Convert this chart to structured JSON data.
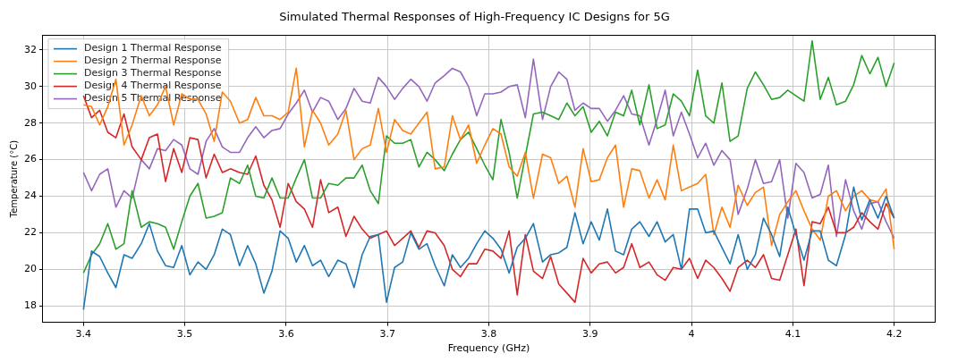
{
  "chart_data": {
    "type": "line",
    "title": "Simulated Thermal Responses of High-Frequency IC Designs for 5G",
    "xlabel": "Frequency (GHz)",
    "ylabel": "Temperature (°C)",
    "x": [
      3.4,
      3.408,
      3.416,
      3.424,
      3.432,
      3.44,
      3.448,
      3.457,
      3.465,
      3.473,
      3.481,
      3.489,
      3.497,
      3.505,
      3.513,
      3.521,
      3.529,
      3.537,
      3.545,
      3.554,
      3.562,
      3.57,
      3.578,
      3.586,
      3.594,
      3.602,
      3.61,
      3.618,
      3.626,
      3.634,
      3.642,
      3.651,
      3.659,
      3.667,
      3.675,
      3.683,
      3.691,
      3.699,
      3.707,
      3.715,
      3.723,
      3.731,
      3.739,
      3.747,
      3.756,
      3.764,
      3.772,
      3.78,
      3.788,
      3.796,
      3.804,
      3.812,
      3.82,
      3.828,
      3.836,
      3.844,
      3.853,
      3.861,
      3.869,
      3.877,
      3.885,
      3.893,
      3.901,
      3.909,
      3.917,
      3.925,
      3.933,
      3.941,
      3.949,
      3.958,
      3.966,
      3.974,
      3.982,
      3.99,
      3.998,
      4.006,
      4.014,
      4.022,
      4.03,
      4.038,
      4.046,
      4.055,
      4.063,
      4.071,
      4.079,
      4.087,
      4.095,
      4.103,
      4.111,
      4.119,
      4.127,
      4.135,
      4.143,
      4.152,
      4.16,
      4.168,
      4.176,
      4.184,
      4.192,
      4.2
    ],
    "series": [
      {
        "name": "Design 1 Thermal Response",
        "color": "#1f77b4",
        "values": [
          17.8,
          21.0,
          20.7,
          19.8,
          19.0,
          20.8,
          20.6,
          21.4,
          22.5,
          21.0,
          20.2,
          20.1,
          21.3,
          19.7,
          20.4,
          20.0,
          20.8,
          22.2,
          21.9,
          20.2,
          21.3,
          20.3,
          18.7,
          19.9,
          22.1,
          21.7,
          20.4,
          21.3,
          20.2,
          20.5,
          19.6,
          20.5,
          20.3,
          19.0,
          20.8,
          21.8,
          21.9,
          18.2,
          20.1,
          20.4,
          22.0,
          21.1,
          21.4,
          20.2,
          19.1,
          20.8,
          20.1,
          20.6,
          21.4,
          22.1,
          21.7,
          21.1,
          19.8,
          21.2,
          21.7,
          22.5,
          20.4,
          20.8,
          20.9,
          21.2,
          23.1,
          21.4,
          22.6,
          21.6,
          23.3,
          21.0,
          20.8,
          22.2,
          22.6,
          21.8,
          22.6,
          21.5,
          21.9,
          20.0,
          23.3,
          23.3,
          22.0,
          22.1,
          21.2,
          20.3,
          21.9,
          20.0,
          20.8,
          22.8,
          21.9,
          20.7,
          23.4,
          21.9,
          20.5,
          22.1,
          22.1,
          20.5,
          20.2,
          21.9,
          24.5,
          22.7,
          23.8,
          22.8,
          24.0,
          22.8
        ]
      },
      {
        "name": "Design 2 Thermal Response",
        "color": "#ff7f0e",
        "values": [
          29.0,
          28.9,
          27.9,
          28.9,
          30.4,
          26.8,
          27.9,
          29.5,
          28.4,
          29.0,
          30.0,
          27.9,
          29.6,
          29.3,
          29.3,
          28.5,
          27.0,
          29.7,
          29.2,
          28.0,
          28.2,
          29.4,
          28.4,
          28.4,
          28.2,
          28.6,
          31.0,
          26.7,
          28.7,
          28.0,
          26.8,
          27.4,
          28.7,
          26.0,
          26.6,
          26.8,
          28.8,
          26.4,
          28.2,
          27.6,
          27.4,
          28.0,
          28.6,
          25.5,
          25.6,
          28.4,
          27.1,
          27.9,
          25.8,
          26.8,
          27.7,
          27.4,
          25.6,
          25.1,
          26.4,
          23.9,
          26.3,
          26.1,
          24.7,
          25.1,
          23.4,
          26.6,
          24.8,
          24.9,
          26.1,
          26.8,
          23.4,
          25.5,
          25.4,
          23.9,
          24.9,
          23.8,
          26.8,
          24.3,
          24.5,
          24.7,
          25.2,
          21.9,
          23.4,
          22.3,
          24.6,
          23.5,
          24.2,
          24.5,
          21.3,
          23.0,
          23.7,
          24.3,
          23.2,
          22.2,
          21.6,
          24.0,
          24.3,
          23.2,
          24.0,
          24.3,
          23.8,
          23.7,
          24.4,
          21.1
        ]
      },
      {
        "name": "Design 3 Thermal Response",
        "color": "#2ca02c",
        "values": [
          19.8,
          20.8,
          21.4,
          22.5,
          21.1,
          21.4,
          24.3,
          22.3,
          22.6,
          22.5,
          22.3,
          21.1,
          22.6,
          24.0,
          24.7,
          22.8,
          22.9,
          23.1,
          25.0,
          24.7,
          25.7,
          24.0,
          23.9,
          25.0,
          23.9,
          23.9,
          25.0,
          26.0,
          23.9,
          23.9,
          24.7,
          24.6,
          25.0,
          25.0,
          25.7,
          24.3,
          23.6,
          27.3,
          26.9,
          26.9,
          27.1,
          25.6,
          26.4,
          26.0,
          25.4,
          26.3,
          27.1,
          27.5,
          26.6,
          25.7,
          24.9,
          28.2,
          26.4,
          23.9,
          26.2,
          28.5,
          28.6,
          28.4,
          28.2,
          29.1,
          28.4,
          28.9,
          27.5,
          28.1,
          27.3,
          28.6,
          28.4,
          29.8,
          27.9,
          30.1,
          27.7,
          27.9,
          29.6,
          29.2,
          28.4,
          30.9,
          28.4,
          28.0,
          30.2,
          27.0,
          27.3,
          29.9,
          30.8,
          30.1,
          29.3,
          29.4,
          29.8,
          29.5,
          29.2,
          32.5,
          29.3,
          30.5,
          29.0,
          29.2,
          30.1,
          31.7,
          30.7,
          31.6,
          30.0,
          31.3
        ]
      },
      {
        "name": "Design 4 Thermal Response",
        "color": "#d62728",
        "values": [
          29.5,
          28.3,
          28.7,
          27.5,
          27.2,
          28.5,
          26.7,
          26.0,
          27.2,
          27.4,
          24.8,
          26.6,
          25.3,
          27.2,
          27.1,
          25.0,
          26.3,
          25.3,
          25.5,
          25.3,
          25.2,
          26.2,
          24.6,
          23.8,
          22.3,
          24.7,
          23.7,
          23.3,
          22.3,
          24.9,
          23.1,
          23.4,
          21.8,
          22.9,
          22.2,
          21.7,
          21.9,
          22.1,
          21.3,
          21.7,
          22.1,
          21.2,
          22.1,
          22.0,
          21.3,
          20.0,
          19.6,
          20.3,
          20.3,
          21.1,
          21.0,
          20.6,
          22.1,
          18.6,
          21.9,
          19.9,
          19.5,
          20.7,
          19.2,
          18.7,
          18.2,
          20.6,
          19.8,
          20.3,
          20.4,
          19.8,
          20.1,
          21.4,
          20.1,
          20.4,
          19.7,
          19.4,
          20.1,
          20.0,
          20.6,
          19.5,
          20.5,
          20.1,
          19.5,
          18.8,
          20.1,
          20.5,
          20.1,
          20.8,
          19.5,
          19.4,
          20.8,
          22.2,
          19.1,
          22.6,
          22.5,
          23.4,
          22.0,
          22.0,
          22.3,
          23.1,
          22.6,
          22.2,
          23.6,
          22.8
        ]
      },
      {
        "name": "Design 5 Thermal Response",
        "color": "#9467bd",
        "values": [
          25.3,
          24.3,
          25.2,
          25.5,
          23.4,
          24.3,
          23.9,
          26.0,
          25.5,
          26.6,
          26.5,
          27.1,
          26.8,
          25.5,
          25.2,
          27.0,
          27.7,
          26.7,
          26.4,
          26.4,
          27.2,
          27.8,
          27.2,
          27.6,
          27.7,
          28.5,
          29.1,
          29.8,
          28.6,
          29.4,
          29.2,
          28.2,
          28.8,
          29.9,
          29.2,
          29.1,
          30.5,
          30.0,
          29.3,
          29.9,
          30.4,
          30.0,
          29.2,
          30.2,
          30.6,
          31.0,
          30.8,
          30.0,
          28.4,
          29.6,
          29.6,
          29.7,
          30.0,
          30.1,
          28.3,
          31.5,
          28.2,
          30.0,
          30.8,
          30.4,
          28.7,
          29.1,
          28.8,
          28.8,
          28.1,
          28.7,
          29.5,
          28.5,
          28.4,
          26.8,
          28.2,
          29.8,
          27.3,
          28.6,
          27.4,
          26.1,
          26.9,
          25.7,
          26.5,
          26.0,
          23.0,
          24.4,
          26.0,
          24.7,
          24.8,
          26.0,
          22.8,
          25.8,
          25.3,
          23.9,
          24.1,
          25.7,
          21.8,
          24.9,
          23.2,
          22.2,
          23.6,
          23.7,
          22.6,
          21.7
        ]
      }
    ],
    "xlim": [
      3.36,
      4.24
    ],
    "xticks": [
      3.4,
      3.5,
      3.6,
      3.7,
      3.8,
      3.9,
      4.0,
      4.1,
      4.2
    ],
    "ylim": [
      17.1,
      32.8
    ],
    "yticks": [
      18,
      20,
      22,
      24,
      26,
      28,
      30,
      32
    ],
    "grid": true,
    "legend": "top left",
    "marker": "none",
    "line_style": "solid"
  }
}
